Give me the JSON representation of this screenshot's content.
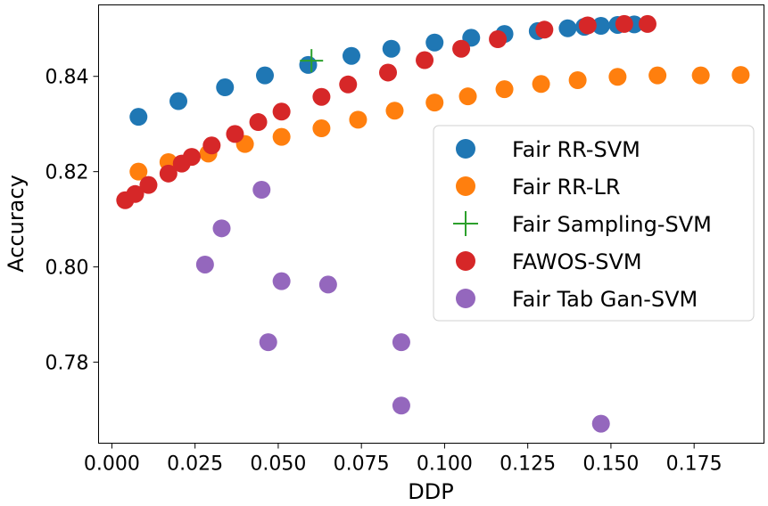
{
  "chart_data": {
    "type": "scatter",
    "title": "",
    "xlabel": "DDP",
    "ylabel": "Accuracy",
    "xlim": [
      -0.004,
      0.196
    ],
    "ylim": [
      0.763,
      0.855
    ],
    "xticks": [
      "0.000",
      "0.025",
      "0.050",
      "0.075",
      "0.100",
      "0.125",
      "0.150",
      "0.175"
    ],
    "xtick_values": [
      0.0,
      0.025,
      0.05,
      0.075,
      0.1,
      0.125,
      0.15,
      0.175
    ],
    "yticks": [
      "0.78",
      "0.80",
      "0.82",
      "0.84"
    ],
    "ytick_values": [
      0.78,
      0.8,
      0.82,
      0.84
    ],
    "grid": false,
    "legend_position": "center-right",
    "series": [
      {
        "name": "Fair RR-SVM",
        "color": "#1f77b4",
        "marker": "circle",
        "points": [
          [
            0.008,
            0.8315
          ],
          [
            0.02,
            0.8348
          ],
          [
            0.034,
            0.8377
          ],
          [
            0.046,
            0.8402
          ],
          [
            0.059,
            0.8424
          ],
          [
            0.072,
            0.8443
          ],
          [
            0.084,
            0.8458
          ],
          [
            0.097,
            0.8471
          ],
          [
            0.108,
            0.8481
          ],
          [
            0.118,
            0.8489
          ],
          [
            0.128,
            0.8495
          ],
          [
            0.137,
            0.8501
          ],
          [
            0.142,
            0.8504
          ],
          [
            0.147,
            0.8506
          ],
          [
            0.152,
            0.8508
          ],
          [
            0.157,
            0.8509
          ]
        ]
      },
      {
        "name": "Fair RR-LR",
        "color": "#ff7f0e",
        "marker": "circle",
        "points": [
          [
            0.008,
            0.82
          ],
          [
            0.017,
            0.822
          ],
          [
            0.029,
            0.8238
          ],
          [
            0.04,
            0.8258
          ],
          [
            0.051,
            0.8273
          ],
          [
            0.063,
            0.8291
          ],
          [
            0.074,
            0.8309
          ],
          [
            0.085,
            0.8328
          ],
          [
            0.097,
            0.8345
          ],
          [
            0.107,
            0.8358
          ],
          [
            0.118,
            0.8373
          ],
          [
            0.129,
            0.8384
          ],
          [
            0.14,
            0.8392
          ],
          [
            0.152,
            0.8399
          ],
          [
            0.164,
            0.8402
          ],
          [
            0.177,
            0.8402
          ],
          [
            0.189,
            0.8403
          ]
        ]
      },
      {
        "name": "Fair Sampling-SVM",
        "color": "#2ca02c",
        "marker": "plus",
        "points": [
          [
            0.06,
            0.8433
          ]
        ]
      },
      {
        "name": "FAWOS-SVM",
        "color": "#d62728",
        "marker": "circle",
        "points": [
          [
            0.004,
            0.814
          ],
          [
            0.007,
            0.8153
          ],
          [
            0.011,
            0.8172
          ],
          [
            0.017,
            0.8196
          ],
          [
            0.021,
            0.8217
          ],
          [
            0.024,
            0.8231
          ],
          [
            0.03,
            0.8255
          ],
          [
            0.037,
            0.8279
          ],
          [
            0.044,
            0.8304
          ],
          [
            0.051,
            0.8326
          ],
          [
            0.063,
            0.8357
          ],
          [
            0.071,
            0.8383
          ],
          [
            0.083,
            0.8408
          ],
          [
            0.094,
            0.8434
          ],
          [
            0.105,
            0.8458
          ],
          [
            0.116,
            0.8478
          ],
          [
            0.13,
            0.8498
          ],
          [
            0.143,
            0.8507
          ],
          [
            0.154,
            0.851
          ],
          [
            0.161,
            0.851
          ]
        ]
      },
      {
        "name": "Fair Tab Gan-SVM",
        "color": "#9467bd",
        "marker": "circle",
        "points": [
          [
            0.028,
            0.8005
          ],
          [
            0.033,
            0.8081
          ],
          [
            0.045,
            0.8162
          ],
          [
            0.047,
            0.7842
          ],
          [
            0.051,
            0.797
          ],
          [
            0.065,
            0.7963
          ],
          [
            0.087,
            0.7842
          ],
          [
            0.087,
            0.7709
          ],
          [
            0.147,
            0.7671
          ]
        ]
      }
    ]
  }
}
